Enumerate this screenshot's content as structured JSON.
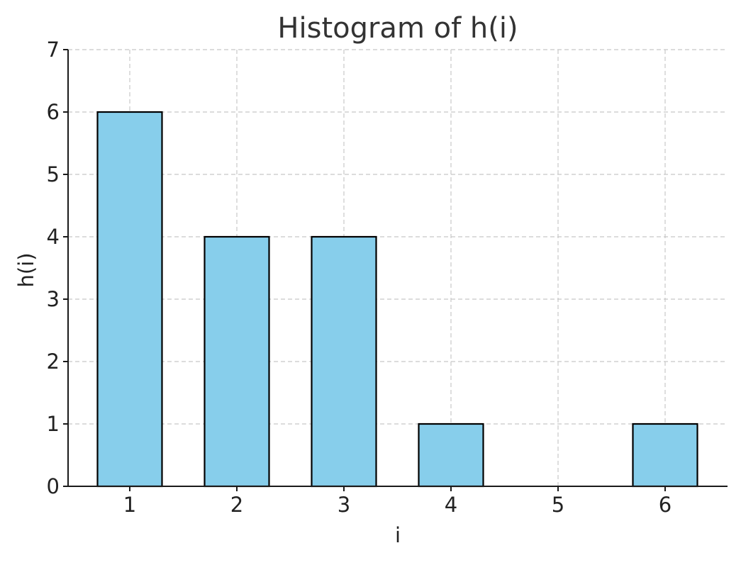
{
  "chart_data": {
    "type": "bar",
    "title": "Histogram of h(i)",
    "xlabel": "i",
    "ylabel": "h(i)",
    "categories": [
      "1",
      "2",
      "3",
      "4",
      "5",
      "6"
    ],
    "values": [
      6,
      4,
      4,
      1,
      0,
      1
    ],
    "yticks": [
      "0",
      "1",
      "2",
      "3",
      "4",
      "5",
      "6",
      "7"
    ],
    "ylim": [
      0,
      7
    ],
    "grid": true,
    "bar_color": "#87CEEB",
    "edge_color": "#000000"
  }
}
